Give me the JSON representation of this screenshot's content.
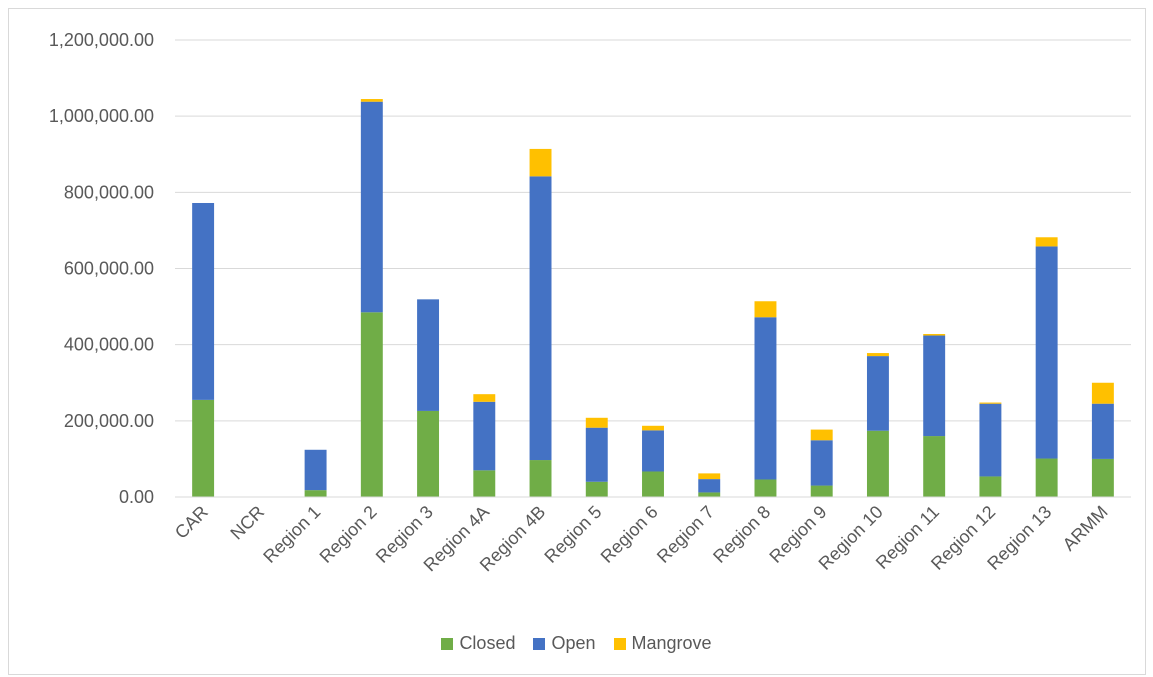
{
  "colors": {
    "closed": "#70ad47",
    "open": "#4472c4",
    "mangrove": "#ffc000",
    "grid": "#d9d9d9",
    "text": "#595959"
  },
  "chart_data": {
    "type": "bar",
    "stacked": true,
    "title": "",
    "xlabel": "",
    "ylabel": "",
    "ylim": [
      0,
      1200000
    ],
    "y_ticks": [
      0,
      200000,
      400000,
      600000,
      800000,
      1000000,
      1200000
    ],
    "y_tick_labels": [
      "0.00",
      "200,000.00",
      "400,000.00",
      "600,000.00",
      "800,000.00",
      "1,000,000.00",
      "1,200,000.00"
    ],
    "grid": true,
    "legend_position": "bottom",
    "categories": [
      "CAR",
      "NCR",
      "Region 1",
      "Region 2",
      "Region 3",
      "Region 4A",
      "Region 4B",
      "Region 5",
      "Region 6",
      "Region 7",
      "Region 8",
      "Region 9",
      "Region 10",
      "Region 11",
      "Region 12",
      "Region 13",
      "ARMM"
    ],
    "series": [
      {
        "name": "Closed",
        "color_key": "closed",
        "values": [
          255000,
          0,
          18000,
          485000,
          226000,
          70000,
          97000,
          40000,
          67000,
          12000,
          46000,
          30000,
          174000,
          160000,
          54000,
          101000,
          100000
        ]
      },
      {
        "name": "Open",
        "color_key": "open",
        "values": [
          517000,
          1000,
          106000,
          553000,
          293000,
          180000,
          745000,
          142000,
          108000,
          35000,
          426000,
          119000,
          196000,
          264000,
          191000,
          557000,
          145000
        ]
      },
      {
        "name": "Mangrove",
        "color_key": "mangrove",
        "values": [
          0,
          0,
          0,
          7000,
          0,
          20000,
          72000,
          26000,
          12000,
          15000,
          42000,
          28000,
          8000,
          4000,
          3000,
          24000,
          55000
        ]
      }
    ]
  }
}
